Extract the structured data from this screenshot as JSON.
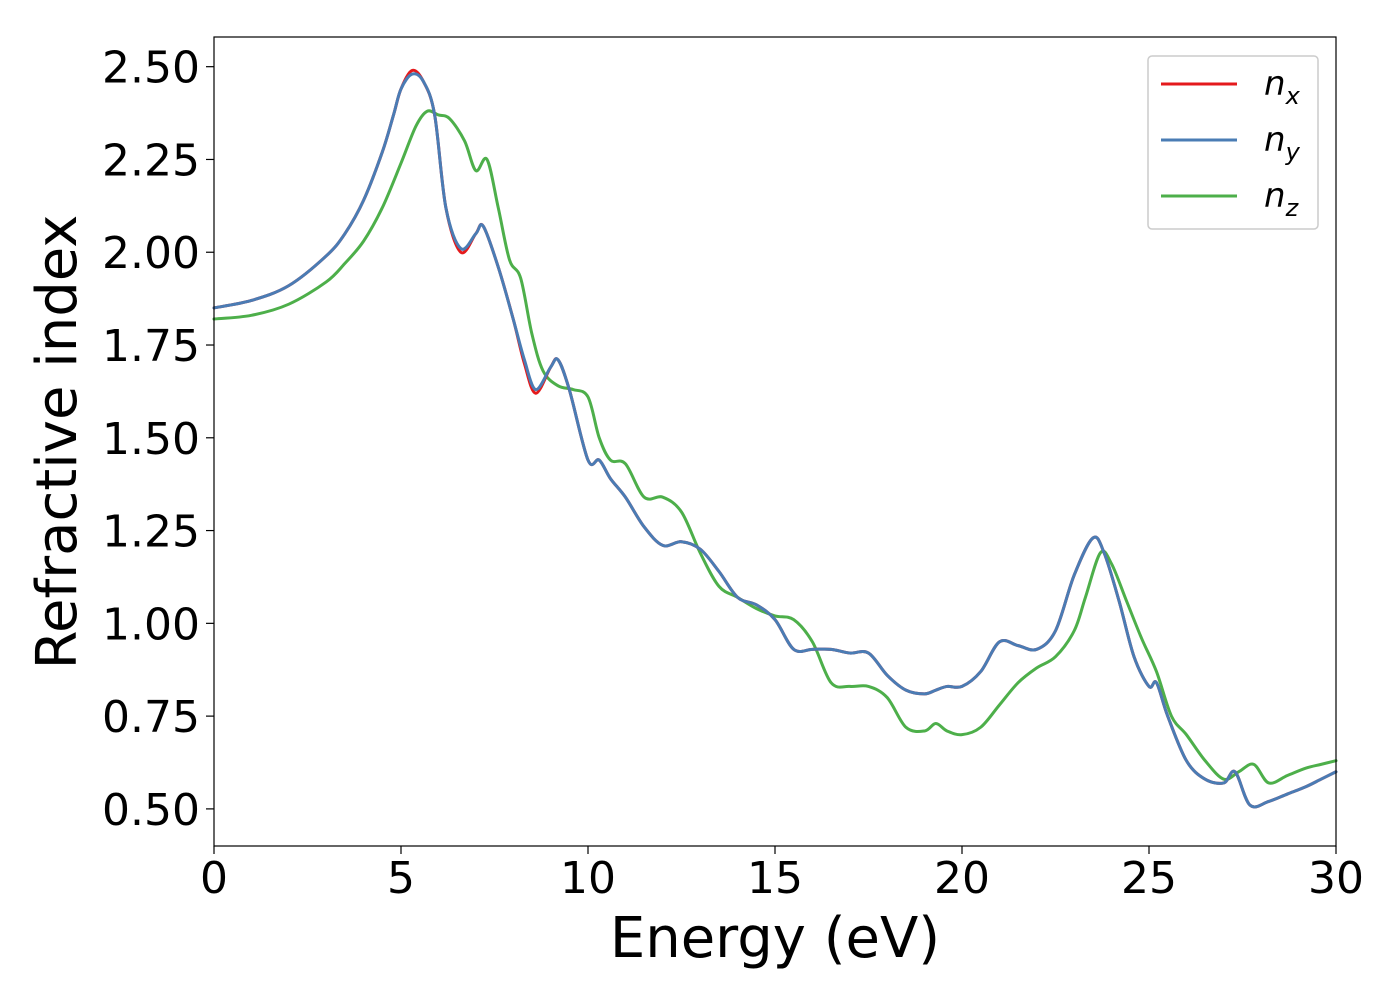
{
  "chart_data": {
    "type": "line",
    "title": "",
    "xlabel": "Energy (eV)",
    "ylabel": "Refractive index",
    "xlim": [
      0,
      30
    ],
    "ylim": [
      0.4,
      2.58
    ],
    "xticks": [
      0,
      5,
      10,
      15,
      20,
      25,
      30
    ],
    "xtick_labels": [
      "0",
      "5",
      "10",
      "15",
      "20",
      "25",
      "30"
    ],
    "yticks": [
      0.5,
      0.75,
      1.0,
      1.25,
      1.5,
      1.75,
      2.0,
      2.25,
      2.5
    ],
    "ytick_labels": [
      "0.50",
      "0.75",
      "1.00",
      "1.25",
      "1.50",
      "1.75",
      "2.00",
      "2.25",
      "2.50"
    ],
    "grid": false,
    "legend_position": "top-right",
    "series": [
      {
        "name": "n_x",
        "legend_main": "n",
        "legend_sub": "x",
        "color": "#e41a1c",
        "x": [
          0,
          1,
          2,
          3,
          3.5,
          4,
          4.5,
          4.8,
          5.0,
          5.3,
          5.6,
          5.9,
          6.2,
          6.6,
          7.0,
          7.2,
          7.6,
          8.0,
          8.3,
          8.6,
          9.0,
          9.2,
          9.5,
          10.0,
          10.3,
          10.6,
          11.0,
          11.5,
          12.0,
          12.5,
          13.0,
          13.5,
          14.0,
          14.5,
          15.0,
          15.5,
          16.0,
          16.5,
          17.0,
          17.5,
          18.0,
          18.5,
          19.0,
          19.3,
          19.6,
          20.0,
          20.5,
          21.0,
          21.5,
          22.0,
          22.5,
          23.0,
          23.5,
          23.8,
          24.2,
          24.6,
          25.0,
          25.2,
          25.5,
          26.0,
          26.5,
          27.0,
          27.3,
          27.7,
          28.2,
          28.7,
          29.2,
          29.6,
          30.0
        ],
        "y": [
          1.85,
          1.87,
          1.91,
          1.99,
          2.05,
          2.14,
          2.27,
          2.37,
          2.44,
          2.49,
          2.46,
          2.37,
          2.12,
          2.0,
          2.05,
          2.07,
          1.96,
          1.82,
          1.7,
          1.62,
          1.69,
          1.71,
          1.63,
          1.44,
          1.44,
          1.39,
          1.34,
          1.26,
          1.21,
          1.22,
          1.2,
          1.14,
          1.07,
          1.05,
          1.01,
          0.93,
          0.93,
          0.93,
          0.92,
          0.92,
          0.86,
          0.82,
          0.81,
          0.82,
          0.83,
          0.83,
          0.87,
          0.95,
          0.94,
          0.93,
          0.98,
          1.13,
          1.23,
          1.19,
          1.06,
          0.91,
          0.83,
          0.84,
          0.75,
          0.63,
          0.58,
          0.57,
          0.6,
          0.51,
          0.52,
          0.54,
          0.56,
          0.58,
          0.6
        ]
      },
      {
        "name": "n_y",
        "legend_main": "n",
        "legend_sub": "y",
        "color": "#4a7cb4",
        "x": [
          0,
          1,
          2,
          3,
          3.5,
          4,
          4.5,
          4.8,
          5.0,
          5.3,
          5.6,
          5.9,
          6.2,
          6.6,
          7.0,
          7.2,
          7.6,
          8.0,
          8.3,
          8.6,
          9.0,
          9.2,
          9.5,
          10.0,
          10.3,
          10.6,
          11.0,
          11.5,
          12.0,
          12.5,
          13.0,
          13.5,
          14.0,
          14.5,
          15.0,
          15.5,
          16.0,
          16.5,
          17.0,
          17.5,
          18.0,
          18.5,
          19.0,
          19.3,
          19.6,
          20.0,
          20.5,
          21.0,
          21.5,
          22.0,
          22.5,
          23.0,
          23.5,
          23.8,
          24.2,
          24.6,
          25.0,
          25.2,
          25.5,
          26.0,
          26.5,
          27.0,
          27.3,
          27.7,
          28.2,
          28.7,
          29.2,
          29.6,
          30.0
        ],
        "y": [
          1.85,
          1.87,
          1.91,
          1.99,
          2.05,
          2.14,
          2.27,
          2.37,
          2.44,
          2.48,
          2.46,
          2.37,
          2.12,
          2.01,
          2.05,
          2.07,
          1.96,
          1.82,
          1.71,
          1.63,
          1.69,
          1.71,
          1.63,
          1.44,
          1.44,
          1.39,
          1.34,
          1.26,
          1.21,
          1.22,
          1.2,
          1.14,
          1.07,
          1.05,
          1.01,
          0.93,
          0.93,
          0.93,
          0.92,
          0.92,
          0.86,
          0.82,
          0.81,
          0.82,
          0.83,
          0.83,
          0.87,
          0.95,
          0.94,
          0.93,
          0.98,
          1.13,
          1.23,
          1.19,
          1.06,
          0.91,
          0.83,
          0.84,
          0.75,
          0.63,
          0.58,
          0.57,
          0.6,
          0.51,
          0.52,
          0.54,
          0.56,
          0.58,
          0.6
        ]
      },
      {
        "name": "n_z",
        "legend_main": "n",
        "legend_sub": "z",
        "color": "#4daf4a",
        "x": [
          0,
          1,
          2,
          3,
          3.5,
          4,
          4.5,
          5.0,
          5.4,
          5.7,
          6.0,
          6.3,
          6.7,
          7.0,
          7.3,
          7.6,
          7.9,
          8.2,
          8.5,
          8.8,
          9.2,
          9.6,
          10.0,
          10.3,
          10.6,
          11.0,
          11.5,
          12.0,
          12.5,
          13.0,
          13.5,
          14.0,
          14.5,
          15.0,
          15.5,
          16.0,
          16.5,
          17.0,
          17.5,
          18.0,
          18.5,
          19.0,
          19.3,
          19.6,
          20.0,
          20.5,
          21.0,
          21.5,
          22.0,
          22.5,
          23.0,
          23.3,
          23.7,
          24.0,
          24.4,
          24.8,
          25.2,
          25.6,
          26.0,
          26.5,
          27.0,
          27.4,
          27.8,
          28.2,
          28.7,
          29.2,
          29.6,
          30.0
        ],
        "y": [
          1.82,
          1.83,
          1.86,
          1.92,
          1.97,
          2.03,
          2.12,
          2.24,
          2.34,
          2.38,
          2.37,
          2.36,
          2.3,
          2.22,
          2.25,
          2.12,
          1.98,
          1.93,
          1.78,
          1.68,
          1.64,
          1.63,
          1.61,
          1.5,
          1.44,
          1.43,
          1.34,
          1.34,
          1.3,
          1.19,
          1.1,
          1.07,
          1.04,
          1.02,
          1.01,
          0.95,
          0.84,
          0.83,
          0.83,
          0.8,
          0.72,
          0.71,
          0.73,
          0.71,
          0.7,
          0.72,
          0.78,
          0.84,
          0.88,
          0.91,
          0.98,
          1.07,
          1.19,
          1.16,
          1.06,
          0.96,
          0.87,
          0.75,
          0.7,
          0.63,
          0.58,
          0.6,
          0.62,
          0.57,
          0.59,
          0.61,
          0.62,
          0.63
        ]
      }
    ]
  }
}
